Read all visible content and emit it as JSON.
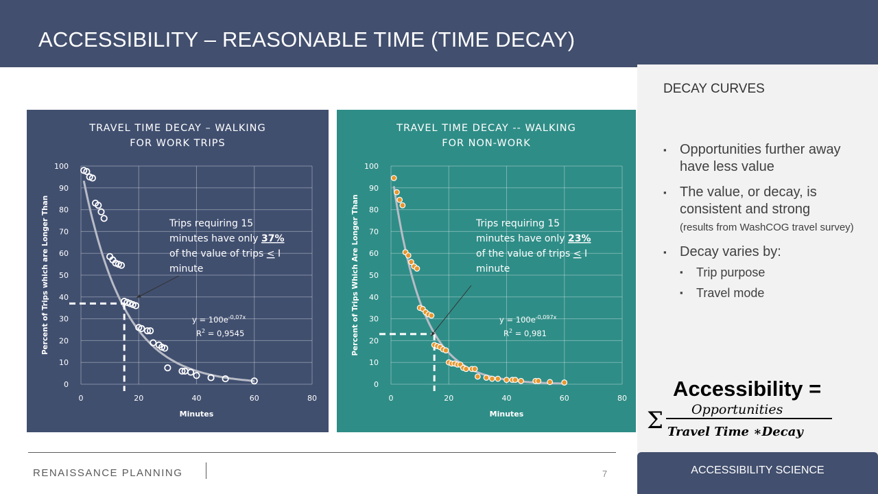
{
  "header": {
    "title": "ACCESSIBILITY – REASONABLE TIME (TIME DECAY)"
  },
  "sidebar": {
    "title": "DECAY CURVES",
    "bullet1": "Opportunities further away have less value",
    "bullet2_main": "The value, or decay, is consistent and strong",
    "bullet2_small": "(results from WashCOG travel survey)",
    "bullet3": "Decay varies by:",
    "sub1": "Trip purpose",
    "sub2": "Travel mode",
    "formula_lhs": "Accessibility =",
    "formula_num": "Opportunities",
    "formula_den": "Travel Time ∗Decay",
    "formula_sigma": "Σ"
  },
  "footer": {
    "brand": "RENAISSANCE PLANNING",
    "page": "7",
    "section": "ACCESSIBILITY SCIENCE"
  },
  "chart_data": [
    {
      "type": "scatter",
      "title": [
        "TRAVEL TIME DECAY – WALKING",
        "FOR WORK TRIPS"
      ],
      "xlabel": "Minutes",
      "ylabel": "Percent of Trips which are Longer Than",
      "xlim": [
        0,
        80
      ],
      "ylim": [
        0,
        100
      ],
      "xticks": [
        "0",
        "20",
        "40",
        "60",
        "80"
      ],
      "yticks": [
        "0",
        "10",
        "20",
        "30",
        "40",
        "50",
        "60",
        "70",
        "80",
        "90",
        "100"
      ],
      "equation": "y = 100e",
      "equation_exp": "-0,07x",
      "r2_prefix": "R",
      "r2_sup": "2",
      "r2_suffix": " = 0,9545",
      "fit": {
        "a": 100,
        "b": 0.07,
        "x_start": 1,
        "x_end": 60
      },
      "marker": {
        "kind": "open",
        "color": "#ffffff"
      },
      "annotation": {
        "pre": "Trips requiring 15",
        "line2_pre": "minutes have only ",
        "pct": "37%",
        "line3_pre": "of the value of trips ",
        "le": "<",
        "line3_post": " I",
        "line4": "minute"
      },
      "highlight": {
        "x": 15,
        "y": 37
      },
      "points": [
        [
          1,
          98
        ],
        [
          2,
          97.5
        ],
        [
          3,
          95
        ],
        [
          4,
          94.5
        ],
        [
          5,
          83
        ],
        [
          6,
          82
        ],
        [
          7,
          79
        ],
        [
          8,
          76
        ],
        [
          10,
          58.5
        ],
        [
          11,
          57
        ],
        [
          12,
          55.5
        ],
        [
          13,
          55
        ],
        [
          14,
          54.5
        ],
        [
          15,
          38
        ],
        [
          16,
          37.5
        ],
        [
          17,
          37
        ],
        [
          18,
          36.5
        ],
        [
          19,
          36
        ],
        [
          20,
          26
        ],
        [
          21,
          25.5
        ],
        [
          23,
          24.5
        ],
        [
          24,
          24.5
        ],
        [
          25,
          19
        ],
        [
          27,
          18
        ],
        [
          28,
          17
        ],
        [
          29,
          16.5
        ],
        [
          30,
          7.5
        ],
        [
          35,
          6
        ],
        [
          36,
          6
        ],
        [
          38,
          5.5
        ],
        [
          40,
          4
        ],
        [
          45,
          3
        ],
        [
          50,
          2.5
        ],
        [
          60,
          1.5
        ]
      ]
    },
    {
      "type": "scatter",
      "title": [
        "TRAVEL TIME DECAY -- WALKING",
        "FOR NON-WORK"
      ],
      "xlabel": "Minutes",
      "ylabel": "Percent of Trips Which Are Longer Than",
      "xlim": [
        0,
        80
      ],
      "ylim": [
        0,
        100
      ],
      "xticks": [
        "0",
        "20",
        "40",
        "60",
        "80"
      ],
      "yticks": [
        "0",
        "10",
        "20",
        "30",
        "40",
        "50",
        "60",
        "70",
        "80",
        "90",
        "100"
      ],
      "equation": "y = 100e",
      "equation_exp": "-0,097x",
      "r2_prefix": "R",
      "r2_sup": "2",
      "r2_suffix": " = 0,981",
      "fit": {
        "a": 100,
        "b": 0.097,
        "x_start": 1,
        "x_end": 60
      },
      "marker": {
        "kind": "filled",
        "color": "#e8962e"
      },
      "annotation": {
        "pre": "Trips requiring 15",
        "line2_pre": "minutes have only ",
        "pct": "23%",
        "line3_pre": "of the value of trips ",
        "le": "<",
        "line3_post": " I",
        "line4": "minute"
      },
      "highlight": {
        "x": 15,
        "y": 23
      },
      "points": [
        [
          1,
          94.5
        ],
        [
          2,
          88
        ],
        [
          3,
          84.5
        ],
        [
          4,
          82
        ],
        [
          5,
          60.5
        ],
        [
          6,
          59
        ],
        [
          7,
          56
        ],
        [
          8,
          54
        ],
        [
          9,
          53
        ],
        [
          10,
          35
        ],
        [
          11,
          34.5
        ],
        [
          12,
          33
        ],
        [
          13,
          32
        ],
        [
          14,
          31.5
        ],
        [
          15,
          18
        ],
        [
          16,
          17.5
        ],
        [
          17,
          17
        ],
        [
          18,
          16
        ],
        [
          19,
          15.5
        ],
        [
          20,
          10
        ],
        [
          21,
          9.5
        ],
        [
          22,
          9.5
        ],
        [
          23,
          9
        ],
        [
          24,
          9
        ],
        [
          25,
          7.5
        ],
        [
          26,
          7
        ],
        [
          28,
          7
        ],
        [
          29,
          7
        ],
        [
          30,
          3.5
        ],
        [
          33,
          3
        ],
        [
          35,
          2.5
        ],
        [
          37,
          2.5
        ],
        [
          40,
          2
        ],
        [
          42,
          2
        ],
        [
          43,
          2
        ],
        [
          45,
          1.5
        ],
        [
          50,
          1.5
        ],
        [
          51,
          1.5
        ],
        [
          55,
          1
        ],
        [
          60,
          0.8
        ]
      ]
    }
  ]
}
